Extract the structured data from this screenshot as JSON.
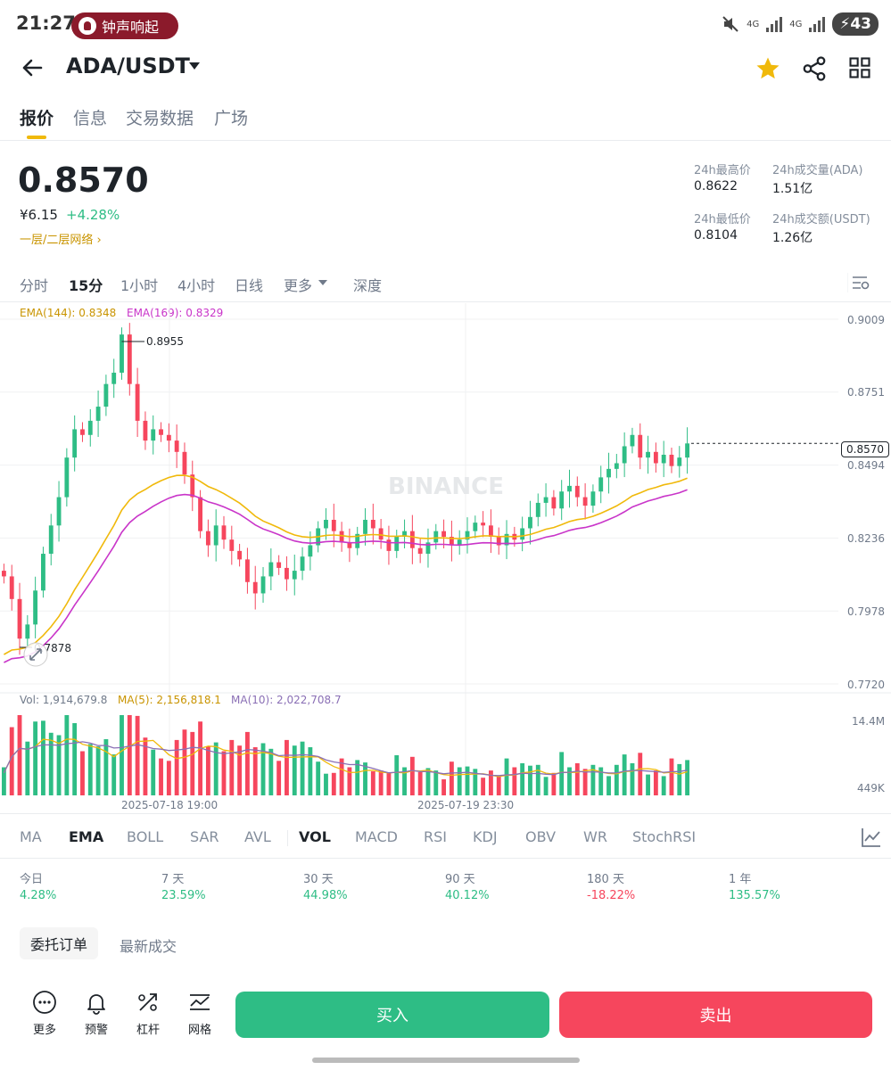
{
  "status_bar": {
    "time": "21:27",
    "alarm_text": "钟声响起",
    "battery": "43",
    "net1": "4G",
    "net2": "4G"
  },
  "header": {
    "title": "ADA/USDT",
    "icons": [
      "back-arrow-icon",
      "star-icon",
      "share-icon",
      "grid-icon"
    ]
  },
  "tabs": [
    {
      "label": "报价"
    },
    {
      "label": "信息"
    },
    {
      "label": "交易数据"
    },
    {
      "label": "广场"
    }
  ],
  "price": {
    "last": "0.8570",
    "cny": "¥6.15",
    "change_pct": "+4.28%",
    "network_link": "一层/二层网络 ›"
  },
  "stats": {
    "high_label": "24h最高价",
    "high": "0.8622",
    "vol_ada_label": "24h成交量(ADA)",
    "vol_ada": "1.51亿",
    "low_label": "24h最低价",
    "low": "0.8104",
    "vol_usdt_label": "24h成交额(USDT)",
    "vol_usdt": "1.26亿"
  },
  "intervals": [
    {
      "label": "分时"
    },
    {
      "label": "15分"
    },
    {
      "label": "1小时"
    },
    {
      "label": "4小时"
    },
    {
      "label": "日线"
    },
    {
      "label": "更多"
    },
    {
      "label": "深度"
    }
  ],
  "chart_data": {
    "type": "candlestick",
    "pair": "ADA/USDT",
    "interval": "15分",
    "watermark": "BINANCE",
    "ema_legend": {
      "ema144": "EMA(144): 0.8348",
      "ema169": "EMA(169): 0.8329"
    },
    "price_axis": [
      "0.9009",
      "0.8751",
      "0.8494",
      "0.8236",
      "0.7978",
      "0.7720"
    ],
    "ylim": [
      0.772,
      0.9009
    ],
    "high_marker": "0.8955",
    "low_marker": "0.7878",
    "last_price_label": "0.8570",
    "vol_legend": {
      "vol": "Vol: 1,914,679.8",
      "ma5": "MA(5): 2,156,818.1",
      "ma10": "MA(10): 2,022,708.7"
    },
    "vol_axis": [
      "14.4M",
      "449K"
    ],
    "time_labels": [
      "2025-07-18 19:00",
      "2025-07-19 23:30"
    ],
    "colors": {
      "up": "#2ebd85",
      "down": "#f6465d",
      "ema144": "#f0b90b",
      "ema169": "#c935c9",
      "ma10": "#8a6fb5"
    },
    "close_path": [
      0.81,
      0.802,
      0.788,
      0.793,
      0.805,
      0.818,
      0.828,
      0.838,
      0.852,
      0.862,
      0.86,
      0.865,
      0.87,
      0.878,
      0.882,
      0.8955,
      0.878,
      0.865,
      0.858,
      0.862,
      0.86,
      0.858,
      0.854,
      0.846,
      0.838,
      0.826,
      0.821,
      0.828,
      0.823,
      0.819,
      0.816,
      0.808,
      0.804,
      0.81,
      0.815,
      0.813,
      0.809,
      0.812,
      0.817,
      0.821,
      0.827,
      0.83,
      0.826,
      0.822,
      0.82,
      0.825,
      0.83,
      0.827,
      0.823,
      0.819,
      0.824,
      0.826,
      0.82,
      0.818,
      0.822,
      0.826,
      0.824,
      0.821,
      0.823,
      0.826,
      0.829,
      0.828,
      0.824,
      0.821,
      0.825,
      0.823,
      0.827,
      0.831,
      0.836,
      0.838,
      0.834,
      0.84,
      0.842,
      0.838,
      0.835,
      0.84,
      0.845,
      0.848,
      0.85,
      0.856,
      0.86,
      0.852,
      0.854,
      0.85,
      0.853,
      0.849,
      0.852,
      0.857
    ]
  },
  "indicators": [
    {
      "label": "MA"
    },
    {
      "label": "EMA"
    },
    {
      "label": "BOLL"
    },
    {
      "label": "SAR"
    },
    {
      "label": "AVL"
    },
    {
      "label": "VOL"
    },
    {
      "label": "MACD"
    },
    {
      "label": "RSI"
    },
    {
      "label": "KDJ"
    },
    {
      "label": "OBV"
    },
    {
      "label": "WR"
    },
    {
      "label": "StochRSI"
    }
  ],
  "performance": [
    {
      "label": "今日",
      "value": "4.28%",
      "dir": "up"
    },
    {
      "label": "7 天",
      "value": "23.59%",
      "dir": "up"
    },
    {
      "label": "30 天",
      "value": "44.98%",
      "dir": "up"
    },
    {
      "label": "90 天",
      "value": "40.12%",
      "dir": "up"
    },
    {
      "label": "180 天",
      "value": "-18.22%",
      "dir": "down"
    },
    {
      "label": "1 年",
      "value": "135.57%",
      "dir": "up"
    }
  ],
  "order_tabs": [
    {
      "label": "委托订单"
    },
    {
      "label": "最新成交"
    }
  ],
  "bottom_bar": {
    "more": "更多",
    "alert": "预警",
    "leverage": "杠杆",
    "grid": "网格",
    "buy": "买入",
    "sell": "卖出"
  }
}
